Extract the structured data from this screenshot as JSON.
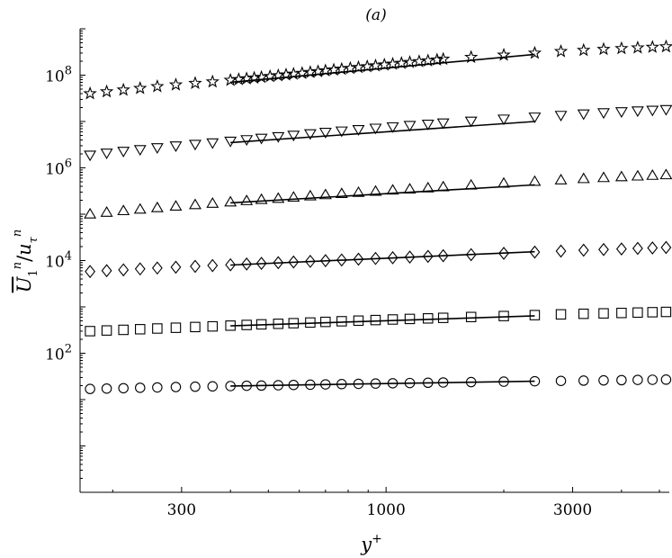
{
  "chart_data": {
    "type": "scatter",
    "title": "(a)",
    "xlabel": "y+",
    "ylabel": "Ū1^n / u_τ^n",
    "x_scale": "log",
    "y_scale": "log",
    "xlim": [
      165,
      5300
    ],
    "ylim": [
      0.1,
      1000000000
    ],
    "grid": false,
    "x_ticks": [
      {
        "value": 300,
        "label": "300"
      },
      {
        "value": 1000,
        "label": "1000"
      },
      {
        "value": 3000,
        "label": "3000"
      }
    ],
    "y_ticks": [
      {
        "value": 100,
        "label": "10^2"
      },
      {
        "value": 10000,
        "label": "10^4"
      },
      {
        "value": 1000000,
        "label": "10^6"
      },
      {
        "value": 100000000,
        "label": "10^8"
      }
    ],
    "series": [
      {
        "marker": "circle",
        "x": [
          175,
          193,
          213,
          235,
          260,
          290,
          325,
          360,
          400,
          440,
          480,
          530,
          580,
          640,
          700,
          770,
          850,
          940,
          1040,
          1150,
          1280,
          1400,
          1650,
          2000,
          2400,
          2800,
          3200,
          3600,
          4000,
          4400,
          4800,
          5200
        ],
        "y": [
          17,
          17.3,
          17.6,
          18,
          18.3,
          18.7,
          19,
          19.3,
          19.6,
          19.9,
          20.1,
          20.4,
          20.7,
          21,
          21.3,
          21.6,
          21.9,
          22.2,
          22.5,
          22.8,
          23.1,
          23.4,
          23.9,
          24.4,
          24.9,
          25.3,
          25.7,
          26,
          26.3,
          26.6,
          26.8,
          27
        ],
        "fit": {
          "x": [
            400,
            2400
          ],
          "y": [
            19.6,
            24.9
          ]
        }
      },
      {
        "marker": "square",
        "x": [
          175,
          193,
          213,
          235,
          260,
          290,
          325,
          360,
          400,
          440,
          480,
          530,
          580,
          640,
          700,
          770,
          850,
          940,
          1040,
          1150,
          1280,
          1400,
          1650,
          2000,
          2400,
          2800,
          3200,
          3600,
          4000,
          4400,
          4800,
          5200
        ],
        "y": [
          300,
          310,
          320,
          330,
          342,
          355,
          368,
          380,
          395,
          408,
          420,
          432,
          445,
          460,
          475,
          490,
          505,
          520,
          535,
          550,
          565,
          580,
          605,
          635,
          665,
          690,
          710,
          725,
          740,
          755,
          768,
          780
        ],
        "fit": {
          "x": [
            400,
            2400
          ],
          "y": [
            390,
            640
          ]
        }
      },
      {
        "marker": "diamond",
        "x": [
          175,
          193,
          213,
          235,
          260,
          290,
          325,
          360,
          400,
          440,
          480,
          530,
          580,
          640,
          700,
          770,
          850,
          940,
          1040,
          1150,
          1280,
          1400,
          1650,
          2000,
          2400,
          2800,
          3200,
          3600,
          4000,
          4400,
          4800,
          5200
        ],
        "y": [
          5800,
          6050,
          6300,
          6600,
          6900,
          7200,
          7500,
          7800,
          8100,
          8400,
          8700,
          9000,
          9300,
          9600,
          9950,
          10300,
          10700,
          11100,
          11500,
          11900,
          12300,
          12700,
          13400,
          14300,
          15200,
          16000,
          16700,
          17300,
          17800,
          18300,
          18700,
          19100
        ],
        "fit": {
          "x": [
            400,
            2400
          ],
          "y": [
            8000,
            15500
          ]
        }
      },
      {
        "marker": "triangle-up",
        "x": [
          175,
          193,
          213,
          235,
          260,
          290,
          325,
          360,
          400,
          440,
          480,
          530,
          580,
          640,
          700,
          770,
          850,
          940,
          1040,
          1150,
          1280,
          1400,
          1650,
          2000,
          2400,
          2800,
          3200,
          3600,
          4000,
          4400,
          4800,
          5200
        ],
        "y": [
          100000,
          109000,
          118000,
          127000,
          137000,
          148000,
          159000,
          170000,
          182000,
          194000,
          206000,
          218000,
          231000,
          246000,
          261000,
          276000,
          292000,
          310000,
          328000,
          346000,
          366000,
          386000,
          420000,
          462000,
          505000,
          545000,
          580000,
          610000,
          636000,
          660000,
          682000,
          702000
        ],
        "fit": {
          "x": [
            400,
            2400
          ],
          "y": [
            175000,
            430000
          ]
        }
      },
      {
        "marker": "triangle-down",
        "x": [
          175,
          193,
          213,
          235,
          260,
          290,
          325,
          360,
          400,
          440,
          480,
          530,
          580,
          640,
          700,
          770,
          850,
          940,
          1040,
          1150,
          1280,
          1400,
          1650,
          2000,
          2400,
          2800,
          3200,
          3600,
          4000,
          4400,
          4800,
          5200
        ],
        "y": [
          1900000,
          2100000,
          2300000,
          2500000,
          2750000,
          3000000,
          3250000,
          3500000,
          3800000,
          4100000,
          4400000,
          4750000,
          5100000,
          5500000,
          5900000,
          6300000,
          6750000,
          7250000,
          7750000,
          8300000,
          8850000,
          9400000,
          10300000,
          11400000,
          12600000,
          13700000,
          14700000,
          15600000,
          16400000,
          17100000,
          17700000,
          18300000
        ],
        "fit": {
          "x": [
            400,
            2400
          ],
          "y": [
            3500000,
            10000000
          ]
        }
      },
      {
        "marker": "star",
        "x": [
          175,
          193,
          213,
          235,
          260,
          290,
          325,
          360,
          400,
          420,
          440,
          460,
          480,
          505,
          530,
          555,
          580,
          610,
          640,
          670,
          700,
          735,
          770,
          810,
          850,
          895,
          940,
          990,
          1040,
          1095,
          1150,
          1215,
          1280,
          1350,
          1400,
          1650,
          2000,
          2400,
          2800,
          3200,
          3600,
          4000,
          4400,
          4800,
          5200
        ],
        "y": [
          40000000,
          44000000,
          48000000,
          52000000,
          57000000,
          62000000,
          67000000,
          72000000,
          78000000,
          81000000,
          84000000,
          87000000,
          90000000,
          94000000,
          98000000,
          102000000,
          106000000,
          110000000,
          115000000,
          120000000,
          125000000,
          130000000,
          135000000,
          141000000,
          147000000,
          153000000,
          160000000,
          167000000,
          174000000,
          181000000,
          189000000,
          197000000,
          205000000,
          214000000,
          222000000,
          244000000,
          272000000,
          300000000,
          325000000,
          345000000,
          362000000,
          377000000,
          390000000,
          402000000,
          412000000
        ],
        "fit": {
          "x": [
            400,
            2400
          ],
          "y": [
            70000000,
            280000000
          ]
        }
      }
    ]
  }
}
